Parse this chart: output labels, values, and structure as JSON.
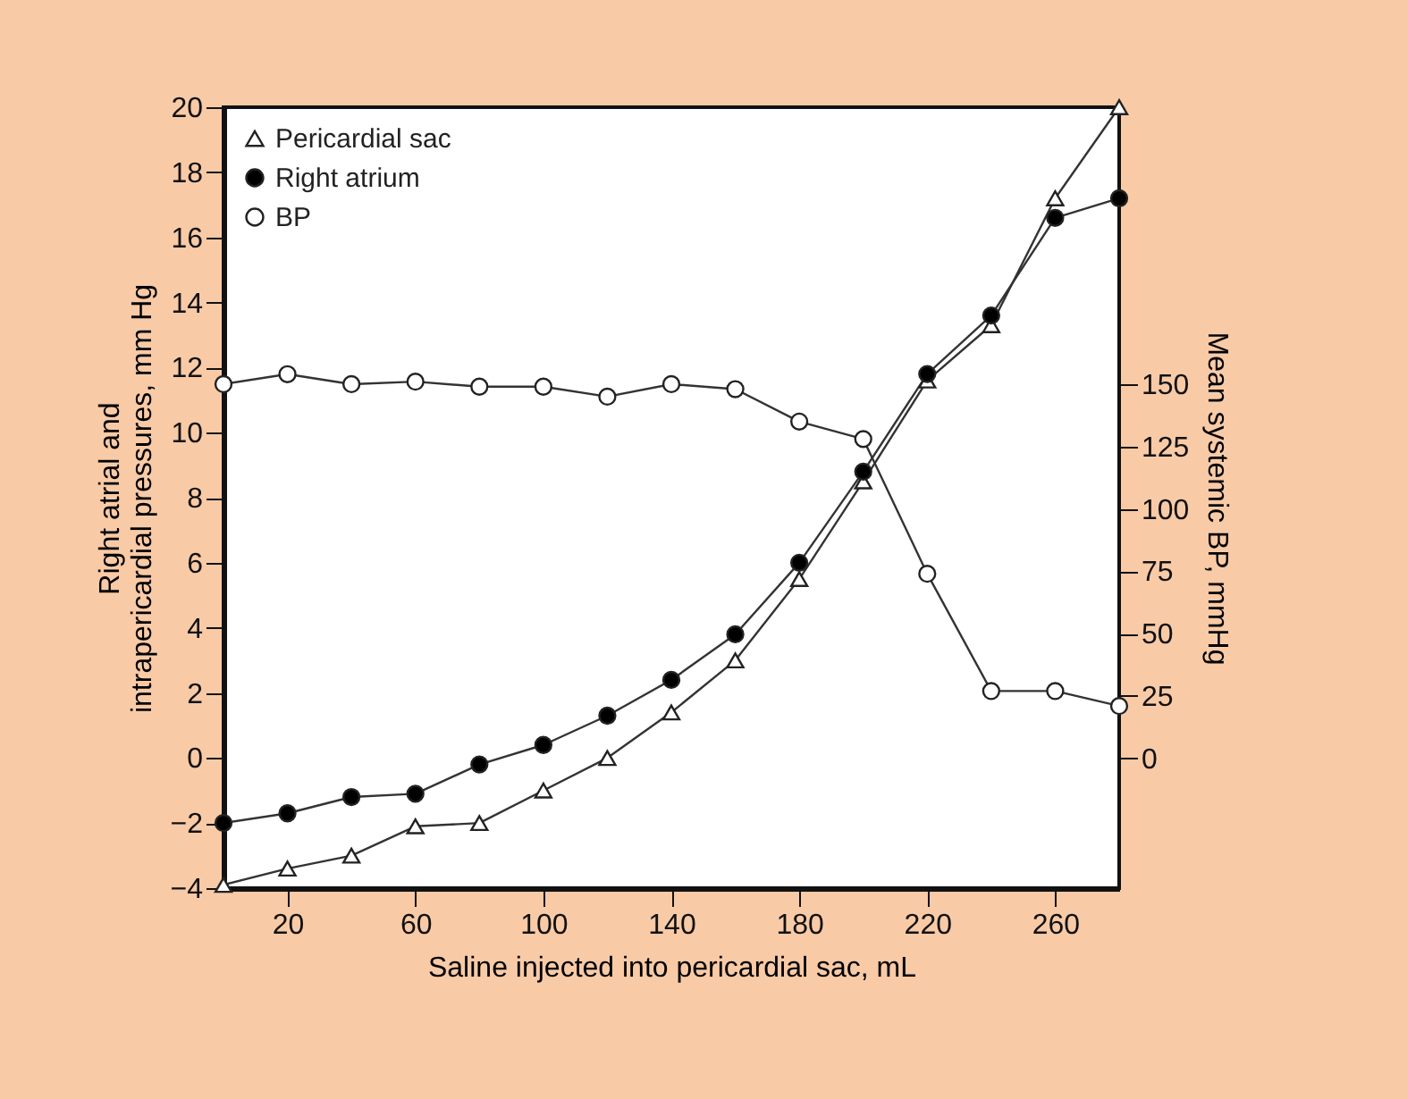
{
  "chart_data": {
    "type": "line",
    "xlabel": "Saline injected into pericardial sac, mL",
    "ylabel": "Right atrial and\nintrapericardial pressures, mm Hg",
    "y2label": "Mean systemic BP, mmHg",
    "x": [
      0,
      20,
      40,
      60,
      80,
      100,
      120,
      140,
      160,
      180,
      200,
      220,
      240,
      260,
      280
    ],
    "xlim": [
      0,
      280
    ],
    "xticks": [
      20,
      60,
      100,
      140,
      180,
      220,
      260
    ],
    "ylim": [
      -4,
      20
    ],
    "yticks": [
      -4,
      -2,
      0,
      2,
      4,
      6,
      8,
      10,
      12,
      14,
      16,
      18,
      20
    ],
    "y2lim": [
      -52,
      261
    ],
    "y2ticks": [
      0,
      25,
      50,
      75,
      100,
      125,
      150
    ],
    "grid": false,
    "legend": "top left",
    "series": [
      {
        "name": "Pericardial sac",
        "color": "#ffffff",
        "marker": "triangle",
        "values": [
          -3.9,
          -3.4,
          -3.0,
          -2.1,
          -2.0,
          -1.0,
          0.0,
          1.4,
          3.0,
          5.5,
          8.5,
          11.6,
          13.3,
          17.2,
          20.0
        ]
      },
      {
        "name": "Right atrium",
        "color": "#000000",
        "marker": "circle",
        "values": [
          -2.0,
          -1.7,
          -1.2,
          -1.1,
          -0.2,
          0.4,
          1.3,
          2.4,
          3.8,
          6.0,
          8.8,
          11.8,
          13.6,
          16.6,
          17.2
        ]
      },
      {
        "name": "BP",
        "color": "#ffffff",
        "marker": "circle",
        "axis": "y2",
        "values": [
          150,
          154,
          150,
          151,
          149,
          149,
          145,
          150,
          148,
          135,
          128,
          74,
          27,
          27,
          21
        ]
      }
    ]
  }
}
